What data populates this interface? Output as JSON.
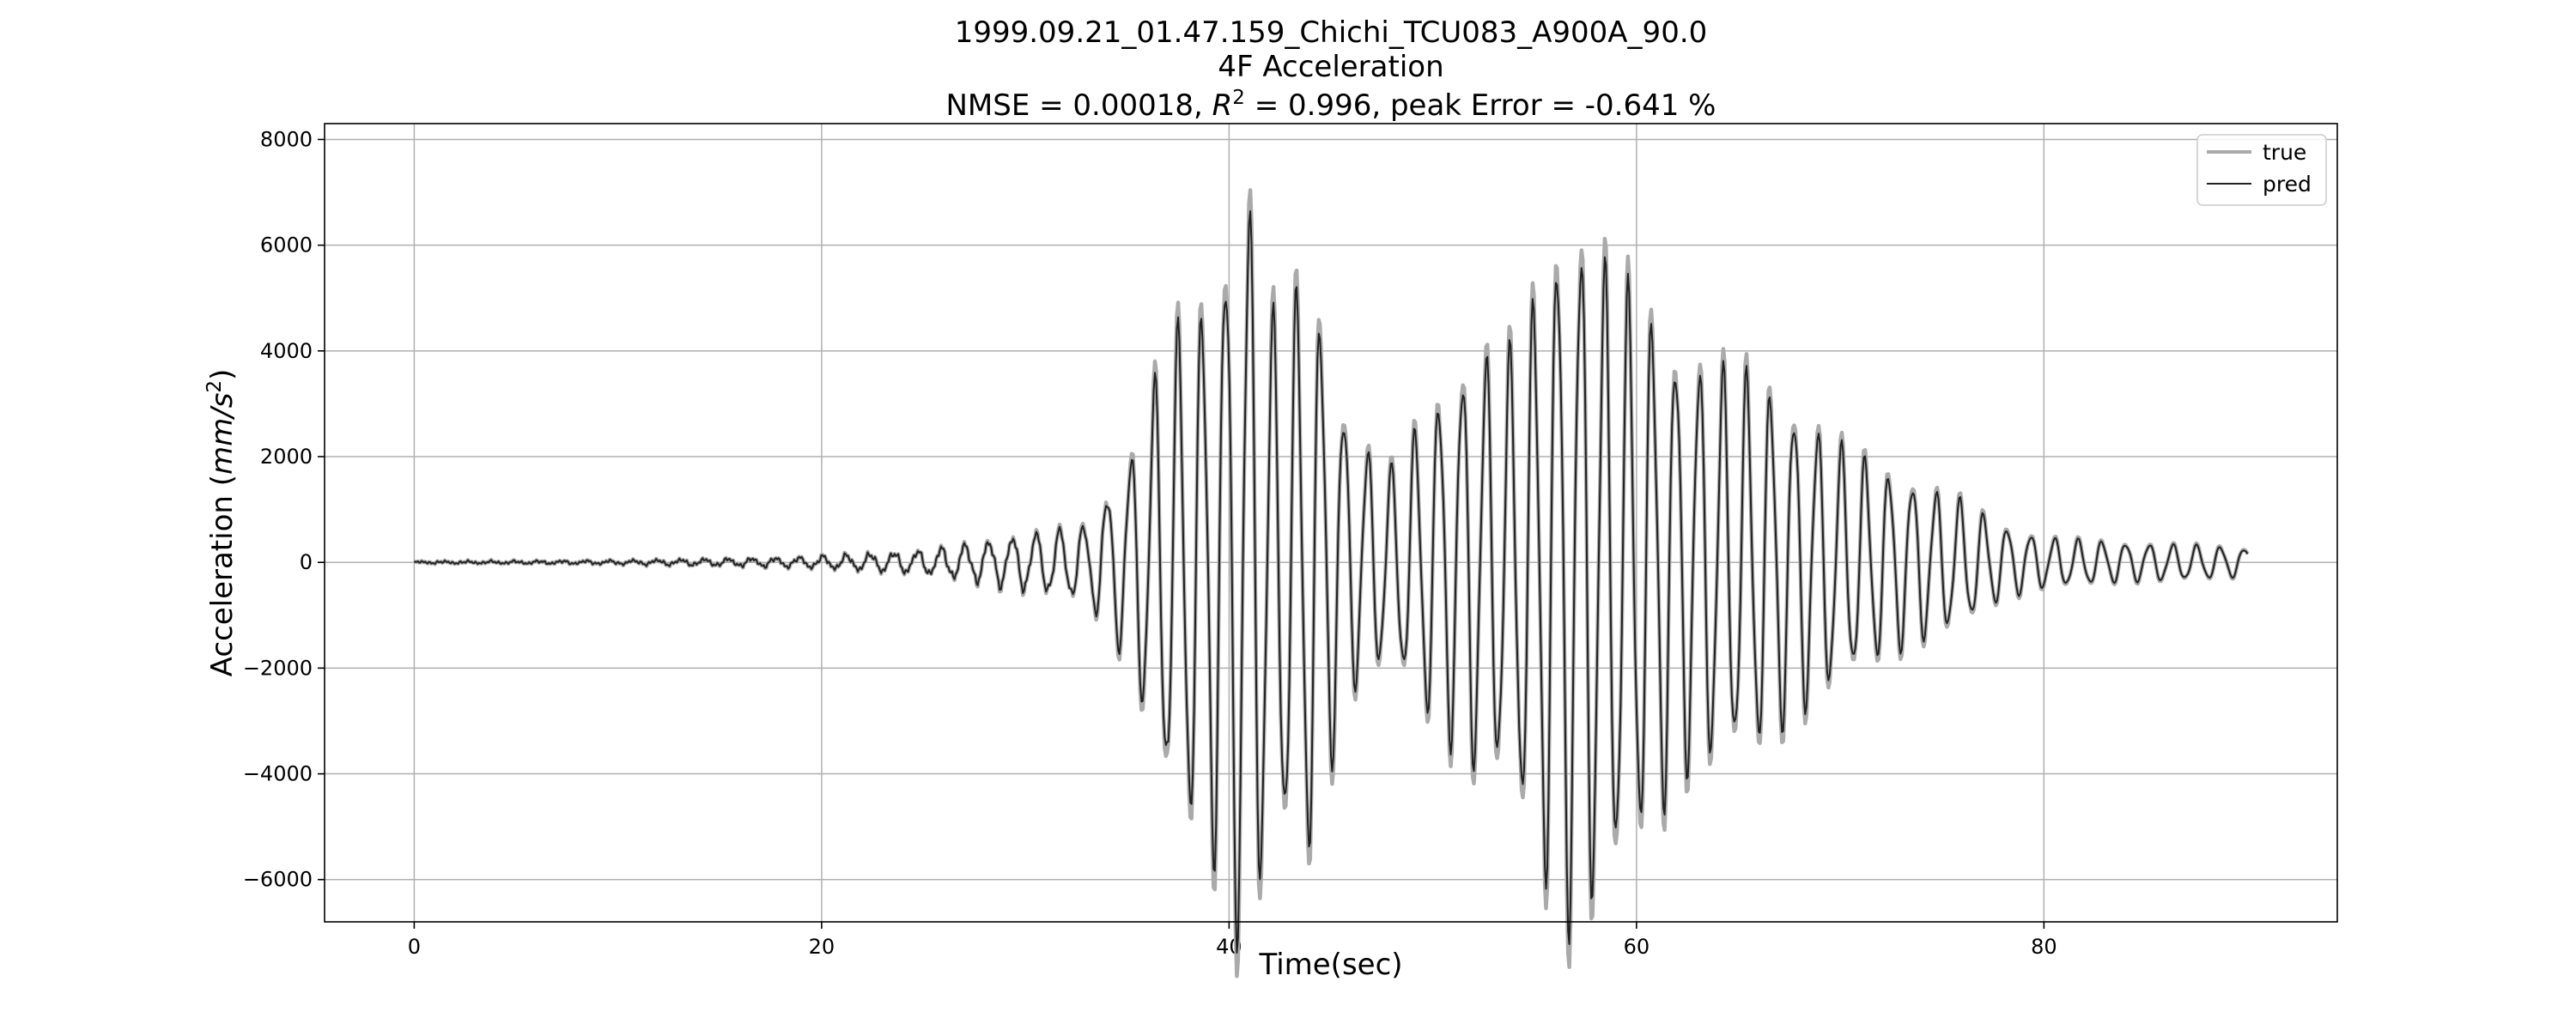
{
  "title_lines": [
    "1999.09.21_01.47.159_Chichi_TCU083_A900A_90.0",
    "4F Acceleration"
  ],
  "metrics_line": {
    "nmse_text": "NMSE = 0.00018, ",
    "r_symbol": "R",
    "r_exponent": "2",
    "rest_text": " = 0.996, peak Error = -0.641 %"
  },
  "chart_data": {
    "type": "line",
    "xlabel": "Time(sec)",
    "ylabel": {
      "prefix": "Acceleration (",
      "unit_italic": "mm/s",
      "unit_exponent": "2",
      "suffix": ")"
    },
    "xlim": [
      -4.4,
      94.4
    ],
    "ylim": [
      -6800,
      8300
    ],
    "xticks": [
      0,
      20,
      40,
      60,
      80
    ],
    "xtick_labels": [
      "0",
      "20",
      "40",
      "60",
      "80"
    ],
    "yticks": [
      -6000,
      -4000,
      -2000,
      0,
      2000,
      4000,
      6000,
      8000
    ],
    "ytick_labels": [
      "−6000",
      "−4000",
      "−2000",
      "0",
      "2000",
      "4000",
      "6000",
      "8000"
    ],
    "grid": true,
    "legend": {
      "position": "top-right",
      "entries": [
        "true",
        "pred"
      ]
    },
    "series": [
      {
        "name": "true",
        "color": "#aaaaaa",
        "style": "thick"
      },
      {
        "name": "pred",
        "color": "#222222",
        "style": "thin"
      }
    ],
    "signal": {
      "sample_step_sec": 0.06,
      "duration_sec": 90,
      "envelope_sec": [
        0,
        10,
        19,
        25,
        30,
        33,
        35,
        37,
        39,
        40,
        41,
        42,
        44,
        46,
        48,
        50,
        52,
        54,
        56,
        57,
        58,
        60,
        62,
        64,
        66,
        68,
        70,
        72,
        74,
        76,
        78,
        80,
        84,
        88,
        90
      ],
      "envelope_amplitude": [
        30,
        50,
        120,
        250,
        550,
        700,
        1800,
        4000,
        4700,
        5800,
        6800,
        4400,
        5000,
        2300,
        1700,
        2900,
        3700,
        3800,
        5800,
        6100,
        5600,
        4700,
        3800,
        3500,
        3300,
        2700,
        2100,
        1700,
        1400,
        1100,
        650,
        450,
        350,
        300,
        250
      ],
      "dominant_frequency_hz": 0.86,
      "true_peak_extra": 0.06,
      "negative_peak_extra": 0.08
    }
  }
}
